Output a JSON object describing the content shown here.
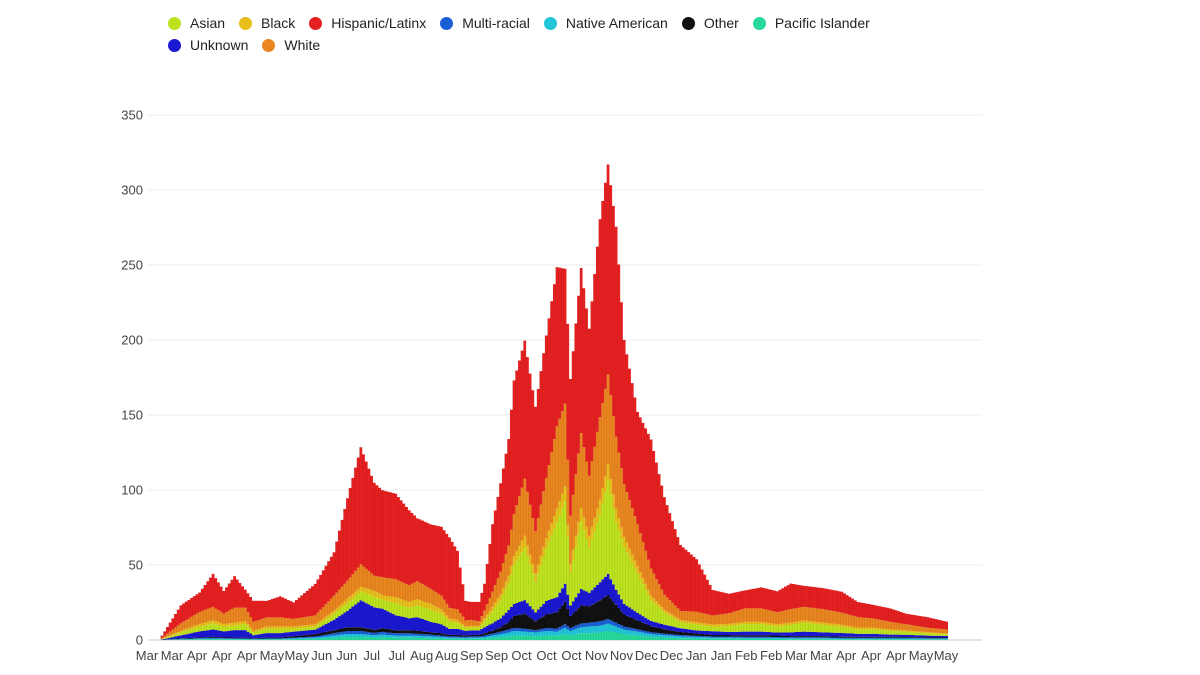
{
  "chart_data": {
    "type": "area",
    "stacked": true,
    "title": "",
    "xlabel": "",
    "ylabel": "",
    "ylim": [
      0,
      380
    ],
    "y_ticks": [
      0,
      50,
      100,
      150,
      200,
      250,
      300,
      350
    ],
    "grid": true,
    "legend_position": "top",
    "x_tick_labels": [
      "Mar",
      "Mar",
      "Apr",
      "Apr",
      "Apr",
      "May",
      "May",
      "Jun",
      "Jun",
      "Jul",
      "Jul",
      "Aug",
      "Aug",
      "Sep",
      "Sep",
      "Oct",
      "Oct",
      "Oct",
      "Nov",
      "Nov",
      "Dec",
      "Dec",
      "Jan",
      "Jan",
      "Feb",
      "Feb",
      "Mar",
      "Mar",
      "Apr",
      "Apr",
      "Apr",
      "May",
      "May"
    ],
    "key_days": [
      0,
      8,
      15,
      20,
      24,
      28,
      32,
      35,
      40,
      45,
      50,
      58,
      65,
      70,
      75,
      80,
      83,
      88,
      93,
      96,
      101,
      105,
      108,
      111,
      114,
      116,
      119,
      121,
      124,
      127,
      130,
      132,
      136,
      140,
      144,
      148,
      151,
      153,
      157,
      160,
      164,
      167,
      170,
      173,
      178,
      183,
      188,
      194,
      200,
      206,
      212,
      218,
      224,
      230,
      235,
      240,
      247,
      254,
      260,
      266,
      272,
      278,
      286,
      294
    ],
    "series": [
      {
        "name": "Pacific Islander",
        "color": "#26d99a",
        "values": [
          0,
          0.3,
          0.5,
          0.6,
          0.5,
          0.4,
          0.4,
          0.3,
          0.4,
          0.4,
          0.6,
          0.8,
          1.5,
          2,
          2,
          1.6,
          1.8,
          1.5,
          1.5,
          1.4,
          1.2,
          1,
          0.8,
          0.8,
          0.7,
          0.8,
          0.8,
          1,
          1.5,
          2,
          2.5,
          3,
          2.8,
          2.5,
          3,
          2.8,
          4,
          3,
          4.5,
          4.5,
          5,
          6,
          5,
          4,
          3,
          2,
          1.6,
          1.2,
          1,
          0.8,
          0.8,
          0.7,
          0.7,
          0.7,
          0.6,
          0.6,
          0.6,
          0.5,
          0.5,
          0.5,
          0.5,
          0.5,
          0.4,
          0.4
        ]
      },
      {
        "name": "Native American",
        "color": "#22c4d8",
        "values": [
          0,
          0.2,
          0.3,
          0.4,
          0.3,
          0.3,
          0.3,
          0.2,
          0.3,
          0.3,
          0.5,
          0.8,
          1.5,
          2,
          2,
          1.6,
          1.8,
          1.5,
          1.5,
          1.4,
          1.2,
          1,
          0.8,
          0.8,
          0.7,
          0.8,
          0.8,
          1,
          1.5,
          2,
          2.5,
          3,
          2.8,
          2.5,
          3,
          2.8,
          4,
          3,
          4,
          4.5,
          4.5,
          5,
          4,
          3,
          2.5,
          2,
          1.6,
          1.2,
          1,
          0.8,
          0.8,
          0.7,
          0.7,
          0.7,
          0.6,
          0.6,
          0.6,
          0.5,
          0.5,
          0.5,
          0.5,
          0.5,
          0.4,
          0.4
        ]
      },
      {
        "name": "Multi-racial",
        "color": "#1a5fd6",
        "values": [
          0,
          0.3,
          0.4,
          0.5,
          0.4,
          0.4,
          0.4,
          0.3,
          0.4,
          0.4,
          0.5,
          0.8,
          1.5,
          2,
          2,
          1.6,
          1.8,
          1.5,
          1.5,
          1.4,
          1.2,
          1,
          0.8,
          0.8,
          0.7,
          0.8,
          0.8,
          1,
          1.2,
          1.5,
          2,
          2,
          2,
          1.5,
          2,
          2,
          2.5,
          2,
          2.5,
          2.5,
          3,
          3,
          2.5,
          2,
          1.6,
          1.2,
          1,
          0.9,
          0.8,
          0.7,
          0.7,
          0.7,
          0.7,
          0.6,
          0.6,
          0.6,
          0.6,
          0.5,
          0.5,
          0.5,
          0.5,
          0.5,
          0.4,
          0.4
        ]
      },
      {
        "name": "Other",
        "color": "#111111",
        "values": [
          0,
          0.3,
          0.5,
          0.6,
          0.5,
          0.5,
          0.5,
          0.4,
          0.5,
          0.5,
          1,
          1.5,
          2,
          2.5,
          2.5,
          2,
          2.5,
          2,
          2,
          2,
          1.5,
          1.5,
          1,
          1,
          1,
          1,
          1,
          1.5,
          2,
          3,
          5,
          8,
          10,
          6,
          9,
          11,
          15,
          8,
          12,
          11,
          14,
          16,
          12,
          8,
          6,
          4,
          3,
          2,
          1.5,
          1,
          1,
          1,
          1,
          1,
          0.8,
          0.8,
          0.8,
          0.7,
          0.6,
          0.6,
          0.6,
          0.5,
          0.5,
          0.5
        ]
      },
      {
        "name": "Unknown",
        "color": "#1b18d2",
        "values": [
          0,
          2,
          4,
          5,
          4,
          5,
          5,
          2,
          3,
          3,
          3,
          3,
          7,
          11,
          18,
          15,
          13,
          10,
          8,
          9,
          7,
          6,
          4,
          4,
          3,
          3,
          3,
          4,
          5,
          6,
          8,
          8,
          9,
          6,
          9,
          10,
          12,
          7,
          11,
          9,
          12,
          14,
          10,
          7,
          5,
          3.5,
          3,
          2.5,
          2,
          2.5,
          2,
          2.5,
          2.5,
          2,
          2.5,
          3,
          2.5,
          2.5,
          2,
          2,
          1.5,
          1.5,
          1.2,
          1
        ]
      },
      {
        "name": "Asian",
        "color": "#bde31e",
        "values": [
          0,
          2,
          3,
          4,
          3,
          3,
          4,
          2,
          3,
          3,
          2,
          2,
          4,
          5,
          6,
          7,
          6,
          8,
          7,
          8,
          8,
          7,
          5,
          4,
          2,
          2,
          2,
          4,
          8,
          12,
          18,
          26,
          35,
          20,
          35,
          50,
          55,
          22,
          45,
          30,
          45,
          62,
          45,
          38,
          26,
          14,
          8,
          4,
          4,
          3,
          4,
          5,
          5,
          4,
          5,
          6,
          5,
          4,
          3,
          3,
          2.5,
          2,
          1.5,
          1
        ]
      },
      {
        "name": "Black",
        "color": "#e6bf1a",
        "values": [
          0,
          1,
          2,
          2,
          2,
          2,
          2,
          1,
          1.5,
          1.5,
          1.5,
          1.5,
          2,
          3,
          3,
          4,
          3,
          4,
          4,
          4,
          4,
          3,
          2,
          2,
          1,
          1,
          1,
          2,
          3,
          4,
          5,
          6,
          8,
          6,
          7,
          9,
          10,
          6,
          9,
          8,
          10,
          11,
          9,
          7,
          5,
          3,
          2,
          1.5,
          1.5,
          1.5,
          1.5,
          1.5,
          1.5,
          1.5,
          1.5,
          1.5,
          1.5,
          1.5,
          1.2,
          1.2,
          1,
          1,
          0.8,
          0.6
        ]
      },
      {
        "name": "White",
        "color": "#e9861f",
        "values": [
          0,
          5,
          8,
          9,
          7,
          10,
          9,
          6,
          6,
          6,
          5,
          6,
          10,
          12,
          15,
          10,
          12,
          12,
          11,
          12,
          10,
          9,
          7,
          7,
          4,
          4,
          3,
          5,
          10,
          15,
          20,
          28,
          38,
          28,
          40,
          55,
          55,
          32,
          50,
          40,
          55,
          60,
          48,
          35,
          28,
          18,
          10,
          6,
          7,
          6,
          7,
          9,
          9,
          8,
          9,
          9,
          9,
          8,
          7,
          6,
          5,
          4,
          3,
          2.5
        ]
      },
      {
        "name": "Hispanic/Latinx",
        "color": "#e52020",
        "values": [
          0,
          12,
          13,
          22,
          15,
          21,
          12,
          14,
          11,
          14,
          11,
          21,
          29,
          55,
          78,
          62,
          58,
          57,
          50,
          42,
          43,
          46,
          47,
          39,
          13,
          12,
          13,
          18,
          45,
          59,
          71,
          89,
          92,
          83,
          95,
          106,
          90,
          91,
          110,
          98,
          132,
          140,
          140,
          96,
          75,
          86,
          65,
          44,
          35,
          17,
          13,
          12,
          14,
          14,
          17,
          14,
          14,
          14,
          10,
          9,
          9,
          7,
          7,
          5
        ]
      }
    ]
  }
}
